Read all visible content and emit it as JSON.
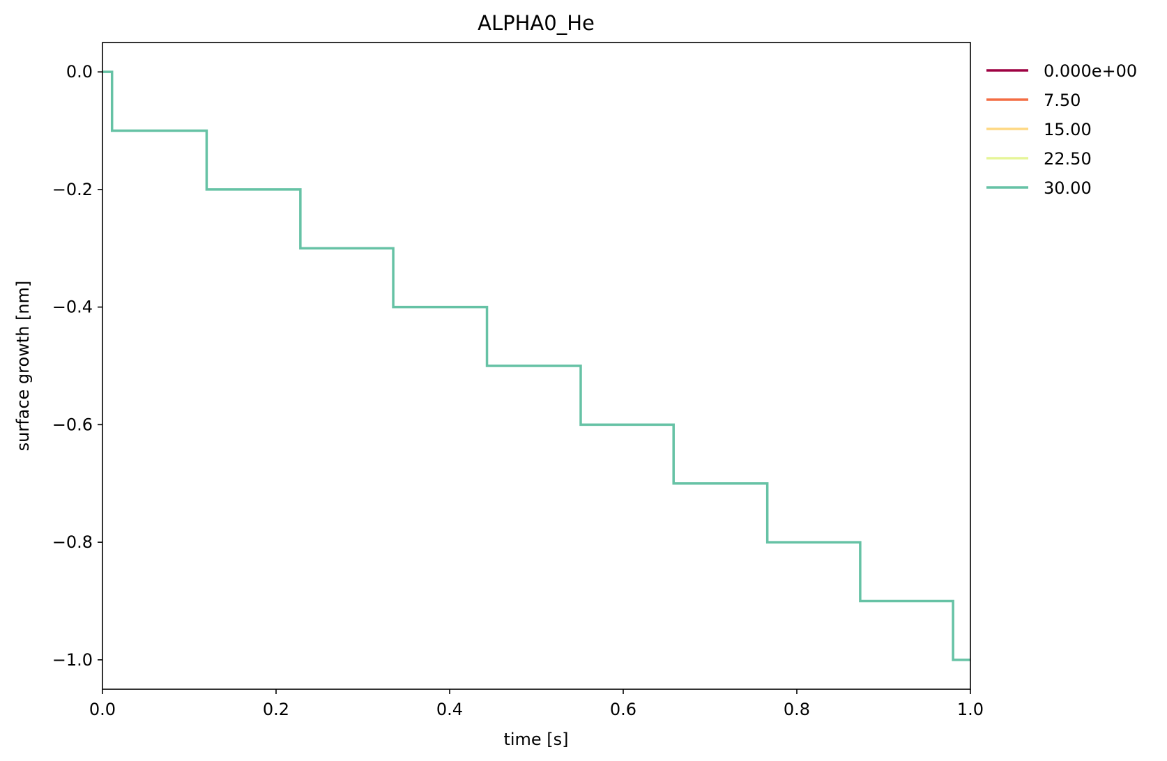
{
  "chart_data": {
    "type": "line",
    "title": "ALPHA0_He",
    "xlabel": "time [s]",
    "ylabel": "surface growth [nm]",
    "xlim": [
      0.0,
      1.0
    ],
    "ylim": [
      -1.05,
      0.05
    ],
    "xticks": [
      0.0,
      0.2,
      0.4,
      0.6,
      0.8,
      1.0
    ],
    "xtick_labels": [
      "0.0",
      "0.2",
      "0.4",
      "0.6",
      "0.8",
      "1.0"
    ],
    "yticks": [
      0.0,
      -0.2,
      -0.4,
      -0.6,
      -0.8,
      -1.0
    ],
    "ytick_labels": [
      "0.0",
      "−0.2",
      "−0.4",
      "−0.6",
      "−0.8",
      "−1.0"
    ],
    "grid": false,
    "legend_position": "outside-right",
    "series": [
      {
        "name": "0.000e+00",
        "color": "#9e0142",
        "x": [],
        "y": []
      },
      {
        "name": "7.50",
        "color": "#f46d43",
        "x": [],
        "y": []
      },
      {
        "name": "15.00",
        "color": "#fed883",
        "x": [],
        "y": []
      },
      {
        "name": "22.50",
        "color": "#e6f598",
        "x": [],
        "y": []
      },
      {
        "name": "30.00",
        "color": "#66c2a5",
        "step": true,
        "x": [
          0.0,
          0.011,
          0.12,
          0.228,
          0.335,
          0.443,
          0.551,
          0.658,
          0.766,
          0.873,
          0.98,
          1.0
        ],
        "y": [
          0.0,
          -0.1,
          -0.2,
          -0.3,
          -0.4,
          -0.5,
          -0.6,
          -0.7,
          -0.8,
          -0.9,
          -1.0,
          -1.0
        ]
      }
    ]
  }
}
